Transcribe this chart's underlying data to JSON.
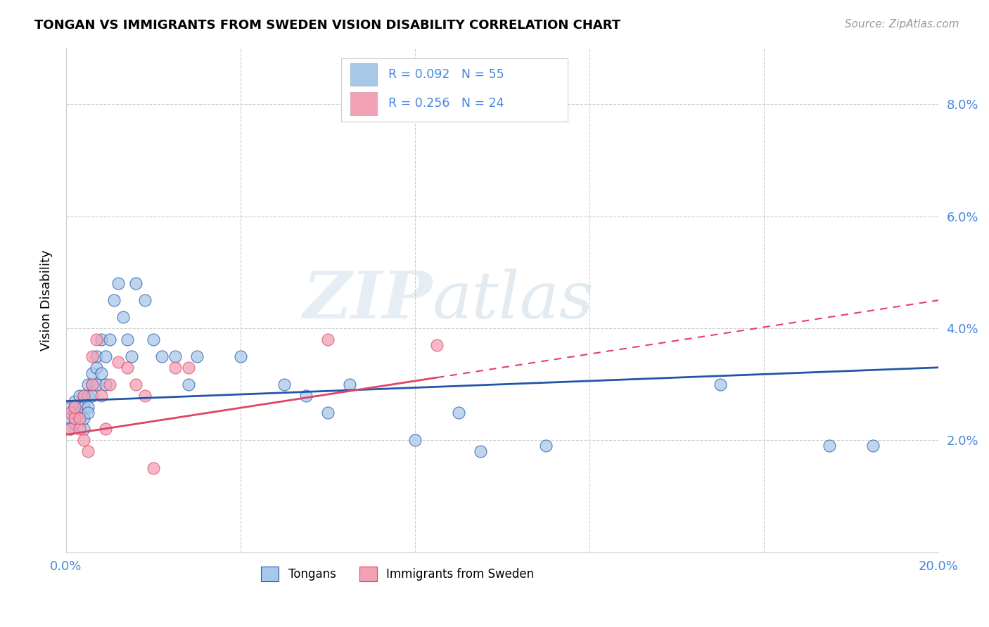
{
  "title": "TONGAN VS IMMIGRANTS FROM SWEDEN VISION DISABILITY CORRELATION CHART",
  "source": "Source: ZipAtlas.com",
  "ylabel": "Vision Disability",
  "xlim": [
    0.0,
    0.2
  ],
  "ylim": [
    0.0,
    0.09
  ],
  "xtick_positions": [
    0.0,
    0.04,
    0.08,
    0.12,
    0.16,
    0.2
  ],
  "xticklabels": [
    "0.0%",
    "",
    "",
    "",
    "",
    "20.0%"
  ],
  "ytick_positions": [
    0.0,
    0.02,
    0.04,
    0.06,
    0.08
  ],
  "yticklabels_right": [
    "",
    "2.0%",
    "4.0%",
    "6.0%",
    "8.0%"
  ],
  "legend_r1": "R = 0.092",
  "legend_n1": "N = 55",
  "legend_r2": "R = 0.256",
  "legend_n2": "N = 24",
  "color_tongans": "#a8c8e8",
  "color_sweden": "#f4a0b5",
  "trendline_tongans": "#2255aa",
  "trendline_sweden": "#dd4466",
  "background_color": "#ffffff",
  "grid_color": "#cccccc",
  "text_color": "#4488dd",
  "tongans_x": [
    0.001,
    0.001,
    0.001,
    0.002,
    0.002,
    0.002,
    0.002,
    0.003,
    0.003,
    0.003,
    0.003,
    0.003,
    0.004,
    0.004,
    0.004,
    0.004,
    0.005,
    0.005,
    0.005,
    0.005,
    0.006,
    0.006,
    0.006,
    0.007,
    0.007,
    0.007,
    0.008,
    0.008,
    0.009,
    0.009,
    0.01,
    0.011,
    0.012,
    0.013,
    0.014,
    0.015,
    0.016,
    0.018,
    0.02,
    0.022,
    0.025,
    0.028,
    0.03,
    0.04,
    0.05,
    0.055,
    0.06,
    0.065,
    0.08,
    0.09,
    0.095,
    0.11,
    0.15,
    0.175,
    0.185
  ],
  "tongans_y": [
    0.026,
    0.022,
    0.024,
    0.025,
    0.023,
    0.027,
    0.026,
    0.025,
    0.024,
    0.026,
    0.028,
    0.025,
    0.022,
    0.024,
    0.026,
    0.028,
    0.03,
    0.028,
    0.026,
    0.025,
    0.03,
    0.032,
    0.028,
    0.035,
    0.033,
    0.03,
    0.038,
    0.032,
    0.035,
    0.03,
    0.038,
    0.045,
    0.048,
    0.042,
    0.038,
    0.035,
    0.048,
    0.045,
    0.038,
    0.035,
    0.035,
    0.03,
    0.035,
    0.035,
    0.03,
    0.028,
    0.025,
    0.03,
    0.02,
    0.025,
    0.018,
    0.019,
    0.03,
    0.019,
    0.019
  ],
  "sweden_x": [
    0.001,
    0.001,
    0.002,
    0.002,
    0.003,
    0.003,
    0.004,
    0.004,
    0.005,
    0.006,
    0.006,
    0.007,
    0.008,
    0.009,
    0.01,
    0.012,
    0.014,
    0.016,
    0.018,
    0.02,
    0.025,
    0.028,
    0.06,
    0.085
  ],
  "sweden_y": [
    0.025,
    0.022,
    0.024,
    0.026,
    0.022,
    0.024,
    0.02,
    0.028,
    0.018,
    0.035,
    0.03,
    0.038,
    0.028,
    0.022,
    0.03,
    0.034,
    0.033,
    0.03,
    0.028,
    0.015,
    0.033,
    0.033,
    0.038,
    0.037
  ],
  "trendline_t_x0": 0.0,
  "trendline_t_y0": 0.027,
  "trendline_t_x1": 0.2,
  "trendline_t_y1": 0.033,
  "trendline_s_x0": 0.0,
  "trendline_s_y0": 0.021,
  "trendline_s_x1": 0.2,
  "trendline_s_y1": 0.045,
  "trendline_s_dash_x0": 0.085,
  "trendline_s_dash_x1": 0.2
}
